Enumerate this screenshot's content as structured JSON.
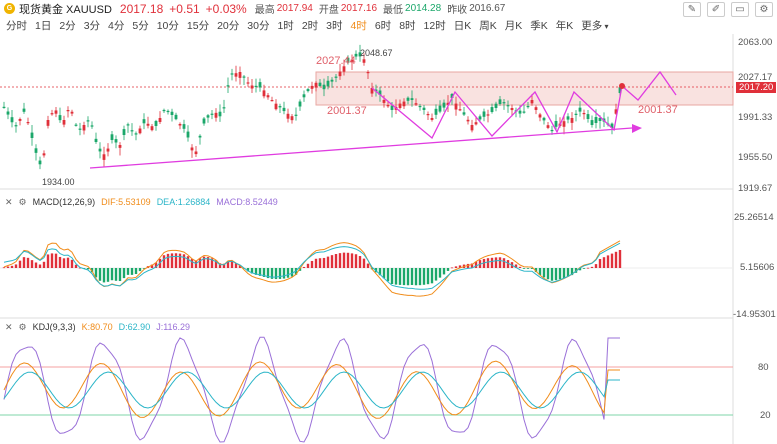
{
  "header": {
    "icon": "gold-coin-icon",
    "symbol": "现货黄金 XAUUSD",
    "price": "2017.18",
    "change": "+0.51",
    "change_pct": "+0.03%",
    "high_label": "最高",
    "high": "2017.94",
    "open_label": "开盘",
    "open": "2017.16",
    "low_label": "最低",
    "low": "2014.28",
    "prev_label": "昨收",
    "prev": "2016.67",
    "tools": [
      "draw-pen-icon",
      "edit-icon",
      "layout-icon",
      "settings-icon"
    ]
  },
  "periods": {
    "items": [
      "分时",
      "1日",
      "2分",
      "3分",
      "4分",
      "5分",
      "10分",
      "15分",
      "20分",
      "30分",
      "1时",
      "2时",
      "3时",
      "4时",
      "6时",
      "8时",
      "12时",
      "日K",
      "周K",
      "月K",
      "季K",
      "年K",
      "更多"
    ],
    "active": "4时"
  },
  "main_chart": {
    "y_ticks": [
      "2063.00",
      "2027.17",
      "1991.33",
      "1955.50",
      "1919.67"
    ],
    "current_price_tag": "2017.20",
    "annotations": {
      "zone_top": "2027.44",
      "zone_bottom_left": "2001.37",
      "zone_bottom_right": "2001.37",
      "swing_high": "2048.67",
      "swing_low": "1934.00"
    },
    "colors": {
      "up": "#e0303a",
      "down": "#1ba76a",
      "zone": "#f7d6d3",
      "trend": "#e03ce0"
    }
  },
  "macd": {
    "name": "MACD(12,26,9)",
    "dif_label": "DIF:5.53109",
    "dea_label": "DEA:1.26884",
    "macd_label": "MACD:8.52449",
    "y_ticks": [
      "25.26514",
      "5.15606",
      "-14.95301"
    ]
  },
  "kdj": {
    "name": "KDJ(9,3,3)",
    "k_label": "K:80.70",
    "d_label": "D:62.90",
    "j_label": "J:116.29",
    "y_ticks": [
      "80",
      "20"
    ]
  }
}
